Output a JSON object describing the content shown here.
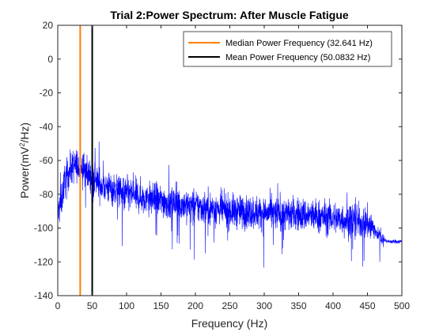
{
  "chart_data": {
    "type": "line",
    "title": "Trial 2:Power Spectrum: After Muscle Fatigue",
    "xlabel": "Frequency (Hz)",
    "ylabel_parts": [
      "Power(mV",
      "2",
      "/Hz)"
    ],
    "xlim": [
      0,
      500
    ],
    "ylim": [
      -140,
      20
    ],
    "xticks": [
      0,
      50,
      100,
      150,
      200,
      250,
      300,
      350,
      400,
      450,
      500
    ],
    "yticks": [
      -140,
      -120,
      -100,
      -80,
      -60,
      -40,
      -20,
      0,
      20
    ],
    "grid": false,
    "legend_position": "top-right",
    "spectrum": {
      "color": "#0000ff",
      "envelope_x": [
        0,
        5,
        10,
        20,
        30,
        40,
        50,
        60,
        80,
        100,
        150,
        200,
        250,
        300,
        350,
        400,
        450,
        460,
        470,
        480,
        500
      ],
      "envelope_y": [
        -92,
        -85,
        -72,
        -64,
        -63,
        -66,
        -70,
        -74,
        -77,
        -80,
        -84,
        -87,
        -90,
        -91,
        -92,
        -94,
        -97,
        -101,
        -106,
        -108,
        -108
      ]
    },
    "vlines": [
      {
        "name": "Median Power Frequency (32.641 Hz)",
        "x": 32.641,
        "color": "#ff8000"
      },
      {
        "name": "Mean Power Frequency (50.0832 Hz)",
        "x": 50.0832,
        "color": "#000000"
      }
    ]
  }
}
